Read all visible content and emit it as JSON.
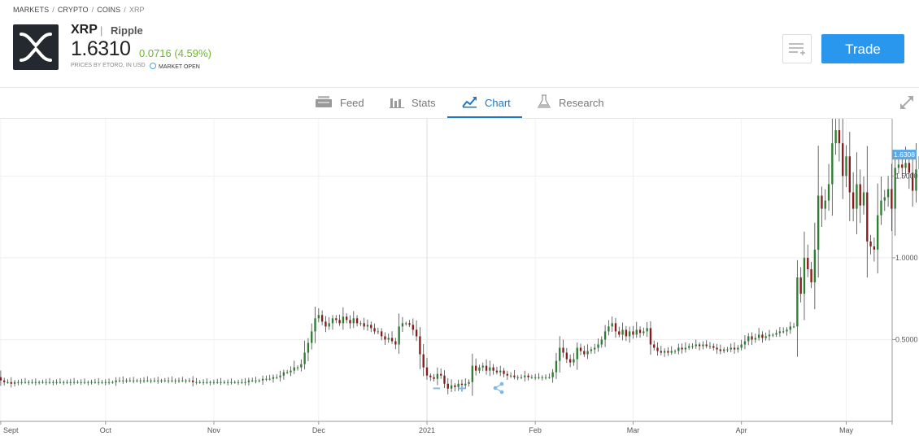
{
  "breadcrumb": [
    "MARKETS",
    "CRYPTO",
    "COINS",
    "XRP"
  ],
  "breadcrumb_separator": "/",
  "instrument": {
    "symbol": "XRP",
    "separator": "|",
    "name": "Ripple",
    "price": "1.6310",
    "change": "0.0716 (4.59%)",
    "price_source": "PRICES BY ETORO, IN USD",
    "market_status": "MARKET OPEN",
    "logo_icon": "xrp-logo-icon"
  },
  "actions": {
    "watchlist_icon": "add-to-watchlist-icon",
    "trade_label": "Trade"
  },
  "tabs": [
    {
      "label": "Feed",
      "icon": "feed-icon"
    },
    {
      "label": "Stats",
      "icon": "stats-icon"
    },
    {
      "label": "Chart",
      "icon": "chart-icon",
      "active": true
    },
    {
      "label": "Research",
      "icon": "research-flask-icon"
    }
  ],
  "colors": {
    "accent": "#1f77c7",
    "trade_button": "#2a97ee",
    "positive": "#6db72c",
    "candle_up": "#2e7d32",
    "candle_down": "#8b1a1a",
    "price_tag": "#5aa9e6"
  },
  "chart_data": {
    "type": "candlestick",
    "x_ticks": [
      "Sept",
      "Oct",
      "Nov",
      "Dec",
      "2021",
      "Feb",
      "Mar",
      "Apr",
      "May"
    ],
    "y_ticks": [
      "0.5000",
      "1.0000",
      "1.5000"
    ],
    "y_tick_values": [
      0.5,
      1.0,
      1.5
    ],
    "ylim": [
      0.0,
      1.85
    ],
    "last_price_label": "1.6308",
    "last_price": 1.6308,
    "grid": true,
    "period_start": "2020-08-29",
    "closes": [
      0.28,
      0.27,
      0.27,
      0.25,
      0.24,
      0.24,
      0.23,
      0.24,
      0.24,
      0.24,
      0.24,
      0.24,
      0.24,
      0.24,
      0.24,
      0.24,
      0.24,
      0.24,
      0.24,
      0.24,
      0.24,
      0.24,
      0.24,
      0.24,
      0.24,
      0.24,
      0.24,
      0.24,
      0.24,
      0.24,
      0.24,
      0.24,
      0.24,
      0.24,
      0.24,
      0.24,
      0.25,
      0.25,
      0.25,
      0.25,
      0.25,
      0.25,
      0.25,
      0.25,
      0.25,
      0.25,
      0.25,
      0.25,
      0.25,
      0.25,
      0.25,
      0.25,
      0.25,
      0.25,
      0.25,
      0.25,
      0.25,
      0.25,
      0.24,
      0.24,
      0.24,
      0.24,
      0.24,
      0.24,
      0.24,
      0.24,
      0.24,
      0.24,
      0.24,
      0.24,
      0.24,
      0.24,
      0.24,
      0.24,
      0.25,
      0.25,
      0.25,
      0.25,
      0.26,
      0.26,
      0.26,
      0.27,
      0.27,
      0.28,
      0.3,
      0.3,
      0.31,
      0.33,
      0.33,
      0.35,
      0.42,
      0.48,
      0.55,
      0.63,
      0.65,
      0.61,
      0.58,
      0.6,
      0.63,
      0.62,
      0.6,
      0.64,
      0.62,
      0.6,
      0.63,
      0.6,
      0.6,
      0.58,
      0.59,
      0.57,
      0.55,
      0.55,
      0.52,
      0.5,
      0.51,
      0.49,
      0.47,
      0.58,
      0.6,
      0.6,
      0.59,
      0.56,
      0.52,
      0.41,
      0.33,
      0.28,
      0.27,
      0.26,
      0.29,
      0.28,
      0.23,
      0.2,
      0.22,
      0.21,
      0.23,
      0.22,
      0.23,
      0.24,
      0.34,
      0.31,
      0.33,
      0.34,
      0.31,
      0.33,
      0.31,
      0.3,
      0.31,
      0.29,
      0.28,
      0.28,
      0.27,
      0.27,
      0.27,
      0.28,
      0.27,
      0.27,
      0.27,
      0.27,
      0.27,
      0.27,
      0.27,
      0.3,
      0.37,
      0.45,
      0.42,
      0.38,
      0.36,
      0.38,
      0.45,
      0.43,
      0.41,
      0.43,
      0.44,
      0.45,
      0.47,
      0.5,
      0.55,
      0.58,
      0.6,
      0.55,
      0.53,
      0.56,
      0.52,
      0.55,
      0.53,
      0.56,
      0.54,
      0.55,
      0.57,
      0.47,
      0.45,
      0.43,
      0.42,
      0.43,
      0.42,
      0.43,
      0.43,
      0.45,
      0.44,
      0.45,
      0.46,
      0.46,
      0.47,
      0.46,
      0.47,
      0.46,
      0.46,
      0.45,
      0.44,
      0.43,
      0.44,
      0.44,
      0.45,
      0.44,
      0.45,
      0.47,
      0.49,
      0.52,
      0.5,
      0.51,
      0.53,
      0.51,
      0.52,
      0.53,
      0.53,
      0.54,
      0.55,
      0.55,
      0.56,
      0.58,
      0.58,
      0.88,
      0.78,
      1.0,
      0.93,
      0.85,
      1.05,
      1.38,
      1.3,
      1.35,
      1.45,
      1.7,
      1.78,
      1.7,
      1.5,
      1.62,
      1.4,
      1.3,
      1.45,
      1.32,
      1.4,
      1.1,
      1.07,
      1.05,
      1.26,
      1.35,
      1.37,
      1.42,
      1.3,
      1.55,
      1.57,
      1.55,
      1.58,
      1.52,
      1.41,
      1.54,
      1.62,
      1.63
    ]
  }
}
